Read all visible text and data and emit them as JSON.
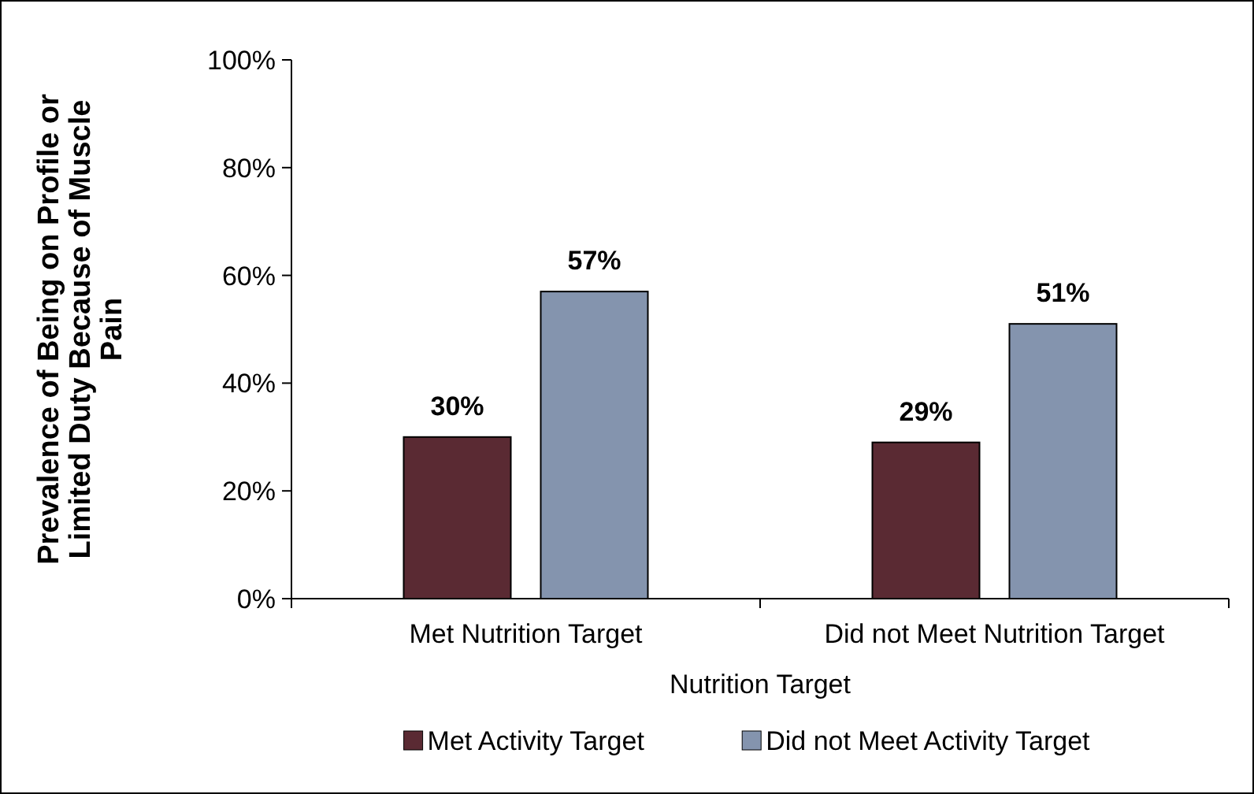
{
  "chart_data": {
    "type": "bar",
    "xlabel": "Nutrition Target",
    "ylabel": "Prevalence of Being on Profile or Limited Duty Because of Muscle Pain",
    "categories": [
      "Met Nutrition Target",
      "Did not Meet Nutrition Target"
    ],
    "series": [
      {
        "name": "Met Activity Target",
        "color": "#5a2a33",
        "values": [
          30,
          29
        ],
        "value_labels": [
          "30%",
          "29%"
        ]
      },
      {
        "name": "Did not Meet Activity Target",
        "color": "#8494ae",
        "values": [
          57,
          51
        ],
        "value_labels": [
          "57%",
          "51%"
        ]
      }
    ],
    "ylim": [
      0,
      100
    ],
    "yticks": [
      {
        "value": 0,
        "label": "0%"
      },
      {
        "value": 20,
        "label": "20%"
      },
      {
        "value": 40,
        "label": "40%"
      },
      {
        "value": 60,
        "label": "60%"
      },
      {
        "value": 80,
        "label": "80%"
      },
      {
        "value": 100,
        "label": "100%"
      }
    ],
    "legend": "bottom"
  }
}
